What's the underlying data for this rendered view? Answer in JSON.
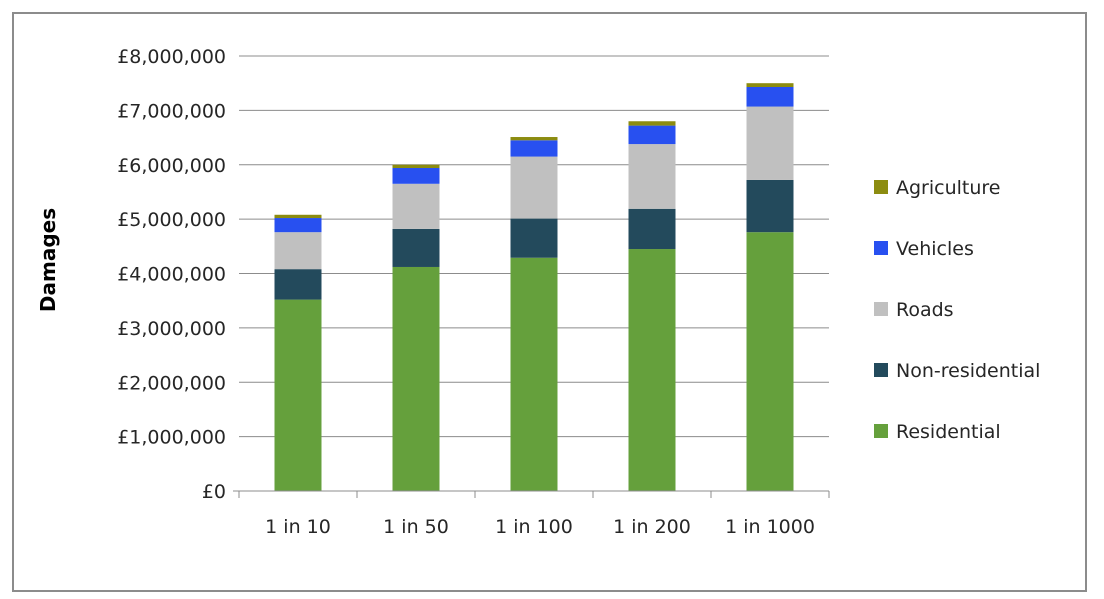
{
  "chart_data": {
    "type": "bar",
    "stacked": true,
    "title": "",
    "xlabel": "",
    "ylabel": "Damages",
    "ylim": [
      0,
      8000000
    ],
    "y_ticks": [
      "£0",
      "£1,000,000",
      "£2,000,000",
      "£3,000,000",
      "£4,000,000",
      "£5,000,000",
      "£6,000,000",
      "£7,000,000",
      "£8,000,000"
    ],
    "categories": [
      "1 in 10",
      "1 in 50",
      "1 in 100",
      "1 in 200",
      "1 in 1000"
    ],
    "grid": "horizontal",
    "legend_position": "right",
    "series": [
      {
        "name": "Residential",
        "color": "#65a03c",
        "values": [
          3520000,
          4120000,
          4290000,
          4450000,
          4760000
        ]
      },
      {
        "name": "Non-residential",
        "color": "#234a5c",
        "values": [
          560000,
          700000,
          720000,
          740000,
          960000
        ]
      },
      {
        "name": "Roads",
        "color": "#c0c0c0",
        "values": [
          680000,
          830000,
          1140000,
          1190000,
          1350000
        ]
      },
      {
        "name": "Vehicles",
        "color": "#2850f0",
        "values": [
          260000,
          290000,
          300000,
          340000,
          360000
        ]
      },
      {
        "name": "Agriculture",
        "color": "#8c8c10",
        "values": [
          60000,
          60000,
          60000,
          80000,
          70000
        ]
      }
    ]
  }
}
